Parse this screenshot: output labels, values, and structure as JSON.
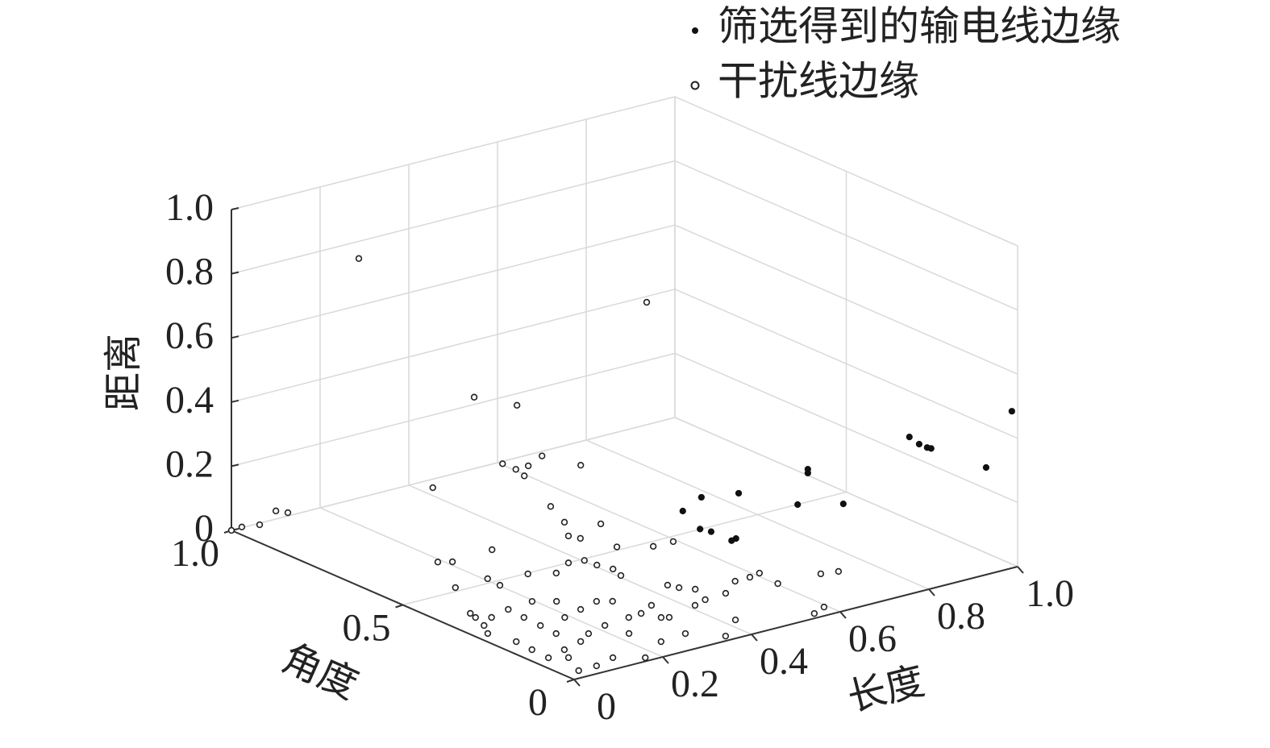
{
  "chart_data": {
    "type": "scatter3d",
    "xlabel": "长度",
    "ylabel": "角度",
    "zlabel": "距离",
    "xlim": [
      0,
      1
    ],
    "ylim": [
      0,
      1
    ],
    "zlim": [
      0,
      1
    ],
    "xticks": [
      0,
      0.2,
      0.4,
      0.6,
      0.8,
      {
        "value": 1,
        "label": "1.0"
      }
    ],
    "yticks": [
      0,
      0.5,
      {
        "value": 1,
        "label": "1.0"
      }
    ],
    "zticks": [
      0,
      0.2,
      0.4,
      0.6,
      0.8,
      {
        "value": 1,
        "label": "1.0"
      }
    ],
    "grid": true,
    "legend": "top-right",
    "series": [
      {
        "name": "筛选得到的输电线边缘",
        "marker": "filled",
        "color": "#111111",
        "x": [
          0.987,
          0.756,
          0.778,
          0.796,
          0.805,
          0.929,
          0.527,
          0.527,
          0.371,
          0.287,
          0.245,
          0.504,
          0.607,
          0.284,
          0.309,
          0.355,
          0.365
        ],
        "y": [
          0,
          0,
          0,
          0,
          0,
          0,
          0,
          0,
          0,
          0,
          0,
          0,
          0,
          0,
          0,
          0,
          0
        ],
        "z": [
          0.489,
          0.49,
          0.46,
          0.443,
          0.437,
          0.334,
          0.47,
          0.458,
          0.45,
          0.467,
          0.439,
          0.368,
          0.334,
          0.369,
          0.352,
          0.308,
          0.311
        ]
      },
      {
        "name": "干扰线边缘",
        "marker": "open",
        "color": "#222222",
        "x": [
          0.21,
          0.55,
          0.161,
          0.103,
          0.023,
          0.05,
          0,
          0.008,
          0.025,
          0.145,
          0.324,
          0.225,
          0.255,
          0.283,
          0.314,
          0.274,
          0.179,
          0.21,
          0.219,
          0.292,
          0.246,
          0.124,
          0.251,
          0.333,
          0.378,
          0.219,
          0.255,
          0.079,
          0.112,
          0.686,
          0.719,
          0.601,
          0.574,
          0.54,
          0.487,
          0.593,
          0.457,
          0.437,
          0.582,
          0.547,
          0.414,
          0.347,
          0.404,
          0.439,
          0.406,
          0.396,
          0.431,
          0.342,
          0.301,
          0.328,
          0.298,
          0.237,
          0.162,
          0.116,
          0.066,
          0.025,
          0.053,
          0.123,
          0.114,
          0.118,
          0.121,
          0.125,
          0.075,
          0.052,
          0.017,
          0.031,
          0.027,
          0.024,
          0.073,
          0.16,
          0.21,
          0.218,
          0.179,
          0.228,
          0.277,
          0.185,
          0.192,
          0.196,
          0.121,
          0.269,
          0.312,
          0.396,
          0.22,
          0.3,
          0.27,
          0.316,
          0.058,
          0.038
        ],
        "y": [
          0.9,
          0.5,
          0.5,
          0.3,
          0.9,
          0.9,
          1,
          0.98,
          0.95,
          0.6,
          0.4,
          0.5,
          0.5,
          0.5,
          0.5,
          0.5,
          0.3,
          0.3,
          0.3,
          0.3,
          0.3,
          0.4,
          0.2,
          0.2,
          0.2,
          0.3,
          0.3,
          0.5,
          0.5,
          0.168,
          0.159,
          0.237,
          0.23,
          0.229,
          0.188,
          0.173,
          0.238,
          0.183,
          0.024,
          0.007,
          0.065,
          0.007,
          0.17,
          0.262,
          0.412,
          0.376,
          0.285,
          0.217,
          0.194,
          0.147,
          0.061,
          0.053,
          0.002,
          0.037,
          0.02,
          0.019,
          0.085,
          0.14,
          0.2,
          0.251,
          0.303,
          0.354,
          0.338,
          0.355,
          0.274,
          0.209,
          0.158,
          0.106,
          0.123,
          0.165,
          0.182,
          0.122,
          0.259,
          0.276,
          0.293,
          0.362,
          0.465,
          0.506,
          0.503,
          0.483,
          0.456,
          0.446,
          0.336,
          0.276,
          0.19,
          0.155,
          0.378,
          0.312
        ],
        "z": [
          0.82,
          0.75,
          0.591,
          0.679,
          0.099,
          0.084,
          0,
          0.017,
          0.032,
          0.268,
          0.368,
          0.361,
          0.333,
          0.334,
          0.354,
          0.306,
          0.337,
          0.277,
          0.231,
          0.243,
          0.214,
          0.175,
          0.232,
          0.205,
          0.204,
          0.147,
          0.142,
          0.106,
          0.095,
          0.01,
          0.01,
          0.01,
          0.01,
          0.01,
          0.01,
          0.01,
          0.01,
          0.01,
          0.01,
          0.01,
          0.01,
          0.01,
          0.01,
          0.01,
          0.01,
          0.01,
          0.01,
          0.01,
          0.01,
          0.01,
          0.01,
          0.01,
          0.01,
          0.01,
          0.01,
          0.01,
          0.01,
          0.01,
          0.01,
          0.01,
          0.01,
          0.01,
          0.01,
          0.01,
          0.01,
          0.01,
          0.01,
          0.01,
          0.01,
          0.01,
          0.01,
          0.01,
          0.01,
          0.01,
          0.01,
          0.01,
          0.01,
          0.01,
          0.01,
          0.01,
          0.01,
          0.01,
          0.01,
          0.01,
          0.01,
          0.01,
          0.01,
          0.01
        ]
      }
    ]
  }
}
